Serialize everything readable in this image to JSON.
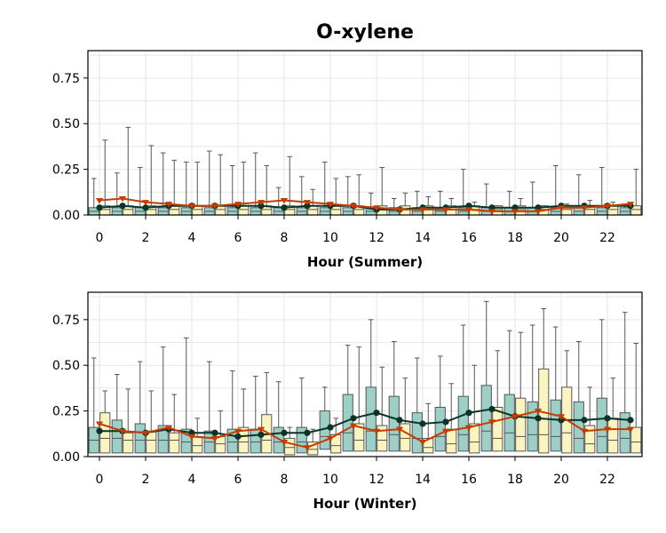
{
  "chart_data": {
    "type": "box",
    "title": "O-xylene",
    "colors": {
      "box_a": "#9dcfc6",
      "box_b": "#faf5c0",
      "median_line_a": "#0b3328",
      "median_line_b": "#c43d00",
      "whisker": "#555555",
      "grid": "#e6e6e6"
    },
    "panels": [
      {
        "xlabel": "Hour (Summer)",
        "ylim": [
          0,
          0.9
        ],
        "yticks": [
          "0.00",
          "0.25",
          "0.50",
          "0.75"
        ],
        "xticks": [
          "0",
          "2",
          "4",
          "6",
          "8",
          "10",
          "12",
          "14",
          "16",
          "18",
          "20",
          "22"
        ],
        "hours": [
          0,
          1,
          2,
          3,
          4,
          5,
          6,
          7,
          8,
          9,
          10,
          11,
          12,
          13,
          14,
          15,
          16,
          17,
          18,
          19,
          20,
          21,
          22,
          23
        ],
        "boxes_a": [
          {
            "q1": 0.0,
            "med": 0.02,
            "q3": 0.04,
            "wmax": 0.2
          },
          {
            "q1": 0.0,
            "med": 0.02,
            "q3": 0.04,
            "wmax": 0.23
          },
          {
            "q1": 0.0,
            "med": 0.02,
            "q3": 0.04,
            "wmax": 0.26
          },
          {
            "q1": 0.0,
            "med": 0.02,
            "q3": 0.04,
            "wmax": 0.34
          },
          {
            "q1": 0.0,
            "med": 0.02,
            "q3": 0.04,
            "wmax": 0.29
          },
          {
            "q1": 0.0,
            "med": 0.02,
            "q3": 0.04,
            "wmax": 0.35
          },
          {
            "q1": 0.0,
            "med": 0.02,
            "q3": 0.04,
            "wmax": 0.27
          },
          {
            "q1": 0.0,
            "med": 0.02,
            "q3": 0.04,
            "wmax": 0.34
          },
          {
            "q1": 0.0,
            "med": 0.02,
            "q3": 0.04,
            "wmax": 0.15
          },
          {
            "q1": 0.0,
            "med": 0.02,
            "q3": 0.04,
            "wmax": 0.21
          },
          {
            "q1": 0.0,
            "med": 0.02,
            "q3": 0.04,
            "wmax": 0.29
          },
          {
            "q1": 0.0,
            "med": 0.02,
            "q3": 0.04,
            "wmax": 0.21
          },
          {
            "q1": 0.0,
            "med": 0.02,
            "q3": 0.04,
            "wmax": 0.12
          },
          {
            "q1": 0.0,
            "med": 0.02,
            "q3": 0.04,
            "wmax": 0.09
          },
          {
            "q1": 0.0,
            "med": 0.02,
            "q3": 0.04,
            "wmax": 0.13
          },
          {
            "q1": 0.0,
            "med": 0.02,
            "q3": 0.04,
            "wmax": 0.13
          },
          {
            "q1": 0.0,
            "med": 0.02,
            "q3": 0.04,
            "wmax": 0.25
          },
          {
            "q1": 0.0,
            "med": 0.02,
            "q3": 0.04,
            "wmax": 0.17
          },
          {
            "q1": 0.0,
            "med": 0.02,
            "q3": 0.04,
            "wmax": 0.13
          },
          {
            "q1": 0.0,
            "med": 0.02,
            "q3": 0.04,
            "wmax": 0.18
          },
          {
            "q1": 0.0,
            "med": 0.02,
            "q3": 0.04,
            "wmax": 0.27
          },
          {
            "q1": 0.0,
            "med": 0.02,
            "q3": 0.04,
            "wmax": 0.22
          },
          {
            "q1": 0.0,
            "med": 0.02,
            "q3": 0.04,
            "wmax": 0.26
          },
          {
            "q1": 0.0,
            "med": 0.02,
            "q3": 0.04,
            "wmax": 0.06
          }
        ],
        "boxes_b": [
          {
            "q1": 0.0,
            "med": 0.03,
            "q3": 0.05,
            "wmax": 0.41
          },
          {
            "q1": 0.0,
            "med": 0.03,
            "q3": 0.05,
            "wmax": 0.48
          },
          {
            "q1": 0.0,
            "med": 0.03,
            "q3": 0.05,
            "wmax": 0.38
          },
          {
            "q1": 0.0,
            "med": 0.03,
            "q3": 0.05,
            "wmax": 0.3
          },
          {
            "q1": 0.0,
            "med": 0.03,
            "q3": 0.05,
            "wmax": 0.29
          },
          {
            "q1": 0.0,
            "med": 0.03,
            "q3": 0.05,
            "wmax": 0.33
          },
          {
            "q1": 0.0,
            "med": 0.03,
            "q3": 0.05,
            "wmax": 0.29
          },
          {
            "q1": 0.0,
            "med": 0.03,
            "q3": 0.05,
            "wmax": 0.27
          },
          {
            "q1": 0.0,
            "med": 0.03,
            "q3": 0.05,
            "wmax": 0.32
          },
          {
            "q1": 0.0,
            "med": 0.03,
            "q3": 0.05,
            "wmax": 0.14
          },
          {
            "q1": 0.0,
            "med": 0.03,
            "q3": 0.05,
            "wmax": 0.2
          },
          {
            "q1": 0.0,
            "med": 0.03,
            "q3": 0.05,
            "wmax": 0.22
          },
          {
            "q1": 0.0,
            "med": 0.03,
            "q3": 0.05,
            "wmax": 0.26
          },
          {
            "q1": 0.0,
            "med": 0.03,
            "q3": 0.05,
            "wmax": 0.12
          },
          {
            "q1": 0.0,
            "med": 0.03,
            "q3": 0.05,
            "wmax": 0.1
          },
          {
            "q1": 0.0,
            "med": 0.03,
            "q3": 0.05,
            "wmax": 0.09
          },
          {
            "q1": 0.0,
            "med": 0.03,
            "q3": 0.05,
            "wmax": 0.07
          },
          {
            "q1": 0.0,
            "med": 0.03,
            "q3": 0.05,
            "wmax": 0.05
          },
          {
            "q1": 0.0,
            "med": 0.03,
            "q3": 0.05,
            "wmax": 0.09
          },
          {
            "q1": 0.0,
            "med": 0.03,
            "q3": 0.05,
            "wmax": 0.05
          },
          {
            "q1": 0.0,
            "med": 0.03,
            "q3": 0.05,
            "wmax": 0.06
          },
          {
            "q1": 0.0,
            "med": 0.03,
            "q3": 0.05,
            "wmax": 0.08
          },
          {
            "q1": 0.0,
            "med": 0.03,
            "q3": 0.05,
            "wmax": 0.07
          },
          {
            "q1": 0.0,
            "med": 0.03,
            "q3": 0.05,
            "wmax": 0.25
          }
        ],
        "line_a": [
          0.04,
          0.05,
          0.04,
          0.05,
          0.05,
          0.05,
          0.05,
          0.05,
          0.04,
          0.05,
          0.05,
          0.05,
          0.03,
          0.03,
          0.04,
          0.04,
          0.05,
          0.04,
          0.04,
          0.04,
          0.05,
          0.05,
          0.05,
          0.05
        ],
        "line_b": [
          0.08,
          0.09,
          0.07,
          0.06,
          0.05,
          0.05,
          0.06,
          0.07,
          0.08,
          0.07,
          0.06,
          0.05,
          0.04,
          0.03,
          0.03,
          0.03,
          0.03,
          0.02,
          0.02,
          0.02,
          0.04,
          0.04,
          0.05,
          0.06
        ]
      },
      {
        "xlabel": "Hour (Winter)",
        "ylim": [
          0,
          0.9
        ],
        "yticks": [
          "0.00",
          "0.25",
          "0.50",
          "0.75"
        ],
        "xticks": [
          "0",
          "2",
          "4",
          "6",
          "8",
          "10",
          "12",
          "14",
          "16",
          "18",
          "20",
          "22"
        ],
        "hours": [
          0,
          1,
          2,
          3,
          4,
          5,
          6,
          7,
          8,
          9,
          10,
          11,
          12,
          13,
          14,
          15,
          16,
          17,
          18,
          19,
          20,
          21,
          22,
          23
        ],
        "boxes_a": [
          {
            "q1": 0.02,
            "med": 0.09,
            "q3": 0.16,
            "wmax": 0.54
          },
          {
            "q1": 0.02,
            "med": 0.1,
            "q3": 0.2,
            "wmax": 0.45
          },
          {
            "q1": 0.02,
            "med": 0.09,
            "q3": 0.18,
            "wmax": 0.52
          },
          {
            "q1": 0.02,
            "med": 0.09,
            "q3": 0.17,
            "wmax": 0.6
          },
          {
            "q1": 0.02,
            "med": 0.08,
            "q3": 0.15,
            "wmax": 0.65
          },
          {
            "q1": 0.02,
            "med": 0.08,
            "q3": 0.14,
            "wmax": 0.52
          },
          {
            "q1": 0.02,
            "med": 0.08,
            "q3": 0.15,
            "wmax": 0.47
          },
          {
            "q1": 0.02,
            "med": 0.08,
            "q3": 0.15,
            "wmax": 0.44
          },
          {
            "q1": 0.02,
            "med": 0.08,
            "q3": 0.16,
            "wmax": 0.41
          },
          {
            "q1": 0.02,
            "med": 0.08,
            "q3": 0.16,
            "wmax": 0.43
          },
          {
            "q1": 0.04,
            "med": 0.11,
            "q3": 0.25,
            "wmax": 0.38
          },
          {
            "q1": 0.03,
            "med": 0.13,
            "q3": 0.34,
            "wmax": 0.61
          },
          {
            "q1": 0.03,
            "med": 0.14,
            "q3": 0.38,
            "wmax": 0.75
          },
          {
            "q1": 0.03,
            "med": 0.12,
            "q3": 0.33,
            "wmax": 0.63
          },
          {
            "q1": 0.02,
            "med": 0.1,
            "q3": 0.24,
            "wmax": 0.54
          },
          {
            "q1": 0.03,
            "med": 0.11,
            "q3": 0.27,
            "wmax": 0.55
          },
          {
            "q1": 0.03,
            "med": 0.12,
            "q3": 0.33,
            "wmax": 0.72
          },
          {
            "q1": 0.03,
            "med": 0.14,
            "q3": 0.39,
            "wmax": 0.85
          },
          {
            "q1": 0.03,
            "med": 0.13,
            "q3": 0.34,
            "wmax": 0.69
          },
          {
            "q1": 0.03,
            "med": 0.12,
            "q3": 0.3,
            "wmax": 0.72
          },
          {
            "q1": 0.03,
            "med": 0.11,
            "q3": 0.31,
            "wmax": 0.71
          },
          {
            "q1": 0.02,
            "med": 0.1,
            "q3": 0.3,
            "wmax": 0.63
          },
          {
            "q1": 0.02,
            "med": 0.11,
            "q3": 0.32,
            "wmax": 0.75
          },
          {
            "q1": 0.02,
            "med": 0.1,
            "q3": 0.24,
            "wmax": 0.79
          }
        ],
        "boxes_b": [
          {
            "q1": 0.02,
            "med": 0.1,
            "q3": 0.24,
            "wmax": 0.36
          },
          {
            "q1": 0.02,
            "med": 0.09,
            "q3": 0.13,
            "wmax": 0.37
          },
          {
            "q1": 0.02,
            "med": 0.09,
            "q3": 0.14,
            "wmax": 0.36
          },
          {
            "q1": 0.02,
            "med": 0.09,
            "q3": 0.13,
            "wmax": 0.34
          },
          {
            "q1": 0.02,
            "med": 0.06,
            "q3": 0.11,
            "wmax": 0.21
          },
          {
            "q1": 0.02,
            "med": 0.07,
            "q3": 0.11,
            "wmax": 0.25
          },
          {
            "q1": 0.02,
            "med": 0.08,
            "q3": 0.16,
            "wmax": 0.37
          },
          {
            "q1": 0.02,
            "med": 0.09,
            "q3": 0.23,
            "wmax": 0.46
          },
          {
            "q1": 0.01,
            "med": 0.05,
            "q3": 0.1,
            "wmax": 0.16
          },
          {
            "q1": 0.01,
            "med": 0.04,
            "q3": 0.08,
            "wmax": 0.15
          },
          {
            "q1": 0.02,
            "med": 0.06,
            "q3": 0.12,
            "wmax": 0.21
          },
          {
            "q1": 0.03,
            "med": 0.09,
            "q3": 0.18,
            "wmax": 0.6
          },
          {
            "q1": 0.03,
            "med": 0.09,
            "q3": 0.17,
            "wmax": 0.49
          },
          {
            "q1": 0.03,
            "med": 0.1,
            "q3": 0.18,
            "wmax": 0.43
          },
          {
            "q1": 0.02,
            "med": 0.05,
            "q3": 0.1,
            "wmax": 0.29
          },
          {
            "q1": 0.02,
            "med": 0.07,
            "q3": 0.15,
            "wmax": 0.4
          },
          {
            "q1": 0.02,
            "med": 0.08,
            "q3": 0.18,
            "wmax": 0.5
          },
          {
            "q1": 0.03,
            "med": 0.1,
            "q3": 0.27,
            "wmax": 0.58
          },
          {
            "q1": 0.03,
            "med": 0.11,
            "q3": 0.32,
            "wmax": 0.68
          },
          {
            "q1": 0.02,
            "med": 0.12,
            "q3": 0.48,
            "wmax": 0.81
          },
          {
            "q1": 0.02,
            "med": 0.13,
            "q3": 0.38,
            "wmax": 0.58
          },
          {
            "q1": 0.02,
            "med": 0.07,
            "q3": 0.17,
            "wmax": 0.38
          },
          {
            "q1": 0.02,
            "med": 0.09,
            "q3": 0.21,
            "wmax": 0.43
          },
          {
            "q1": 0.02,
            "med": 0.08,
            "q3": 0.16,
            "wmax": 0.62
          }
        ],
        "line_a": [
          0.14,
          0.14,
          0.13,
          0.15,
          0.13,
          0.13,
          0.11,
          0.12,
          0.13,
          0.13,
          0.16,
          0.21,
          0.24,
          0.2,
          0.18,
          0.19,
          0.24,
          0.26,
          0.22,
          0.21,
          0.2,
          0.2,
          0.21,
          0.2
        ],
        "line_b": [
          0.18,
          0.14,
          0.13,
          0.16,
          0.11,
          0.1,
          0.14,
          0.15,
          0.08,
          0.05,
          0.1,
          0.17,
          0.14,
          0.15,
          0.08,
          0.14,
          0.16,
          0.19,
          0.22,
          0.25,
          0.22,
          0.14,
          0.15,
          0.15
        ]
      }
    ]
  }
}
